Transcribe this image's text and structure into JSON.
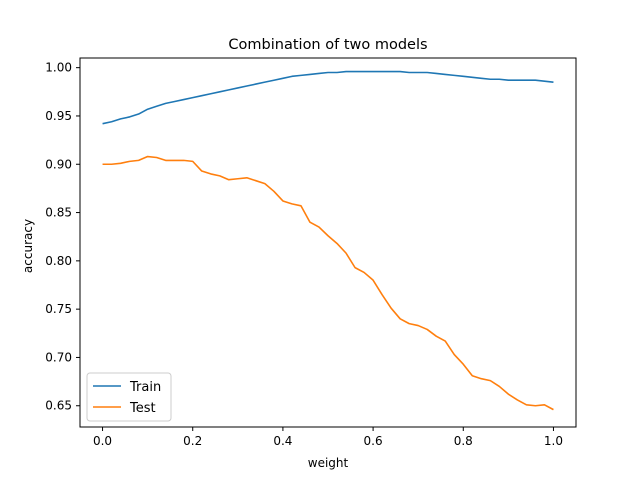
{
  "chart_data": {
    "type": "line",
    "title": "Combination of two models",
    "xlabel": "weight",
    "ylabel": "accuracy",
    "xlim": [
      -0.05,
      1.05
    ],
    "ylim": [
      0.628,
      1.01
    ],
    "xticks": [
      0.0,
      0.2,
      0.4,
      0.6,
      0.8,
      1.0
    ],
    "xtick_labels": [
      "0.0",
      "0.2",
      "0.4",
      "0.6",
      "0.8",
      "1.0"
    ],
    "yticks": [
      0.65,
      0.7,
      0.75,
      0.8,
      0.85,
      0.9,
      0.95,
      1.0
    ],
    "ytick_labels": [
      "0.65",
      "0.70",
      "0.75",
      "0.80",
      "0.85",
      "0.90",
      "0.95",
      "1.00"
    ],
    "grid": false,
    "legend_position": "lower-left",
    "series": [
      {
        "name": "Train",
        "color": "#1f77b4",
        "x": [
          0.0,
          0.02,
          0.04,
          0.06,
          0.08,
          0.1,
          0.12,
          0.14,
          0.16,
          0.18,
          0.2,
          0.22,
          0.24,
          0.26,
          0.28,
          0.3,
          0.32,
          0.34,
          0.36,
          0.38,
          0.4,
          0.42,
          0.44,
          0.46,
          0.48,
          0.5,
          0.52,
          0.54,
          0.56,
          0.58,
          0.6,
          0.62,
          0.64,
          0.66,
          0.68,
          0.7,
          0.72,
          0.74,
          0.76,
          0.78,
          0.8,
          0.82,
          0.84,
          0.86,
          0.88,
          0.9,
          0.92,
          0.94,
          0.96,
          0.98,
          1.0
        ],
        "y": [
          0.942,
          0.944,
          0.947,
          0.949,
          0.952,
          0.957,
          0.96,
          0.963,
          0.965,
          0.967,
          0.969,
          0.971,
          0.973,
          0.975,
          0.977,
          0.979,
          0.981,
          0.983,
          0.985,
          0.987,
          0.989,
          0.991,
          0.992,
          0.993,
          0.994,
          0.995,
          0.995,
          0.996,
          0.996,
          0.996,
          0.996,
          0.996,
          0.996,
          0.996,
          0.995,
          0.995,
          0.995,
          0.994,
          0.993,
          0.992,
          0.991,
          0.99,
          0.989,
          0.988,
          0.988,
          0.987,
          0.987,
          0.987,
          0.987,
          0.986,
          0.985
        ]
      },
      {
        "name": "Test",
        "color": "#ff7f0e",
        "x": [
          0.0,
          0.02,
          0.04,
          0.06,
          0.08,
          0.1,
          0.12,
          0.14,
          0.16,
          0.18,
          0.2,
          0.22,
          0.24,
          0.26,
          0.28,
          0.3,
          0.32,
          0.34,
          0.36,
          0.38,
          0.4,
          0.42,
          0.44,
          0.46,
          0.48,
          0.5,
          0.52,
          0.54,
          0.56,
          0.58,
          0.6,
          0.62,
          0.64,
          0.66,
          0.68,
          0.7,
          0.72,
          0.74,
          0.76,
          0.78,
          0.8,
          0.82,
          0.84,
          0.86,
          0.88,
          0.9,
          0.92,
          0.94,
          0.96,
          0.98,
          1.0
        ],
        "y": [
          0.9,
          0.9,
          0.901,
          0.903,
          0.904,
          0.908,
          0.907,
          0.904,
          0.904,
          0.904,
          0.903,
          0.893,
          0.89,
          0.888,
          0.884,
          0.885,
          0.886,
          0.883,
          0.88,
          0.872,
          0.862,
          0.859,
          0.857,
          0.84,
          0.835,
          0.826,
          0.818,
          0.808,
          0.793,
          0.788,
          0.78,
          0.765,
          0.751,
          0.74,
          0.735,
          0.733,
          0.729,
          0.722,
          0.717,
          0.703,
          0.693,
          0.681,
          0.678,
          0.676,
          0.67,
          0.662,
          0.656,
          0.651,
          0.65,
          0.651,
          0.646
        ]
      }
    ]
  }
}
